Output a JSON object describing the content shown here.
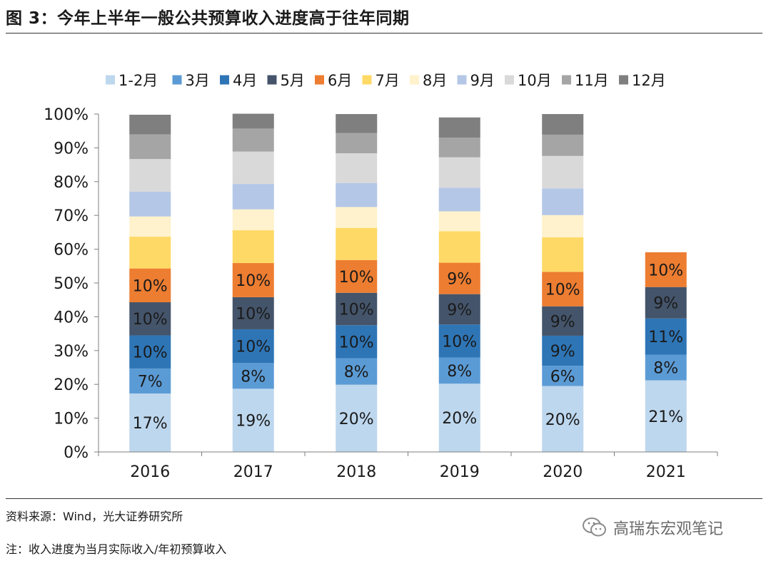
{
  "header": {
    "title": "图 3：今年上半年一般公共预算收入进度高于往年同期"
  },
  "footer": {
    "source": "资料来源：Wind，光大证券研究所",
    "note": "注：收入进度为当月实际收入/年初预算收入",
    "brand": "高瑞东宏观笔记"
  },
  "chart_data": {
    "type": "bar",
    "stacked": true,
    "title": "",
    "xlabel": "",
    "ylabel": "",
    "ylim": [
      0,
      100
    ],
    "yticks": [
      "0%",
      "10%",
      "20%",
      "30%",
      "40%",
      "50%",
      "60%",
      "70%",
      "80%",
      "90%",
      "100%"
    ],
    "legend_position": "top",
    "categories": [
      "2016",
      "2017",
      "2018",
      "2019",
      "2020",
      "2021"
    ],
    "series": [
      {
        "name": "1-2月",
        "color": "#bdd7ee",
        "values": [
          17.3,
          18.7,
          19.9,
          20.2,
          19.5,
          21.2
        ],
        "labels": [
          "17%",
          "19%",
          "20%",
          "20%",
          "20%",
          "21%"
        ]
      },
      {
        "name": "3月",
        "color": "#5b9bd5",
        "values": [
          7.4,
          7.6,
          7.8,
          7.7,
          6.0,
          7.6
        ],
        "labels": [
          "7%",
          "8%",
          "8%",
          "8%",
          "6%",
          "8%"
        ]
      },
      {
        "name": "4月",
        "color": "#2e75b6",
        "values": [
          9.8,
          10.0,
          9.8,
          9.8,
          8.9,
          10.7
        ],
        "labels": [
          "10%",
          "10%",
          "10%",
          "10%",
          "9%",
          "11%"
        ]
      },
      {
        "name": "5月",
        "color": "#44546a",
        "values": [
          9.8,
          9.5,
          9.6,
          9.0,
          8.7,
          9.3
        ],
        "labels": [
          "10%",
          "10%",
          "10%",
          "9%",
          "9%",
          "9%"
        ]
      },
      {
        "name": "6月",
        "color": "#ed7d31",
        "values": [
          10.0,
          10.1,
          9.7,
          9.3,
          10.2,
          10.3
        ],
        "labels": [
          "10%",
          "10%",
          "10%",
          "9%",
          "10%",
          "10%"
        ]
      },
      {
        "name": "7月",
        "color": "#ffd966",
        "values": [
          9.4,
          9.7,
          9.5,
          9.3,
          10.2,
          null
        ]
      },
      {
        "name": "8月",
        "color": "#fff2cc",
        "values": [
          6.0,
          6.2,
          6.2,
          5.9,
          6.6,
          null
        ]
      },
      {
        "name": "9月",
        "color": "#b4c7e7",
        "values": [
          7.3,
          7.5,
          7.1,
          7.0,
          7.9,
          null
        ]
      },
      {
        "name": "10月",
        "color": "#d9d9d9",
        "values": [
          9.7,
          9.6,
          8.8,
          9.0,
          9.6,
          null
        ]
      },
      {
        "name": "11月",
        "color": "#a5a5a5",
        "values": [
          7.3,
          6.8,
          6.0,
          5.8,
          6.3,
          null
        ]
      },
      {
        "name": "12月",
        "color": "#7f7f7f",
        "values": [
          5.8,
          4.4,
          5.6,
          6.0,
          6.1,
          null
        ]
      }
    ]
  }
}
